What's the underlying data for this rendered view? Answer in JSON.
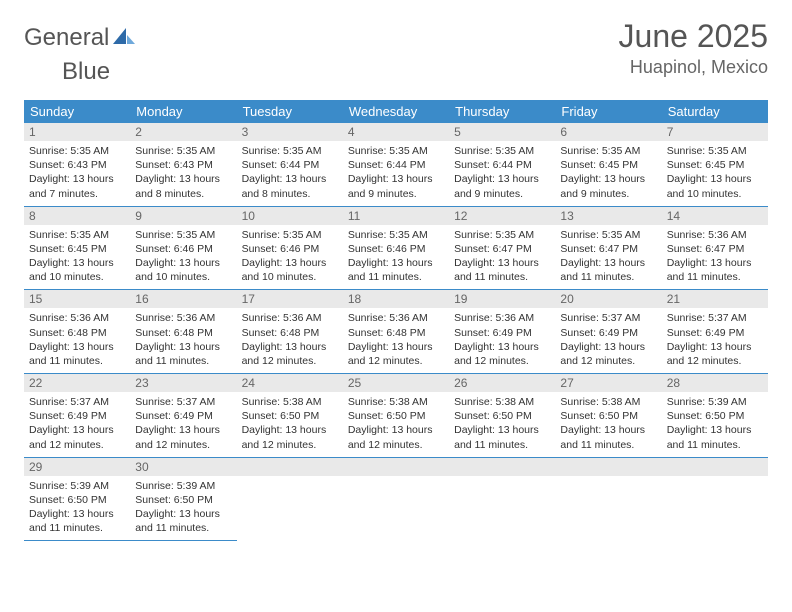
{
  "logo": {
    "gray": "General",
    "blue": "Blue"
  },
  "header": {
    "month": "June 2025",
    "location": "Huapinol, Mexico"
  },
  "weekdays": [
    "Sunday",
    "Monday",
    "Tuesday",
    "Wednesday",
    "Thursday",
    "Friday",
    "Saturday"
  ],
  "colors": {
    "header_bg": "#3b8bc9",
    "row_border": "#3b8bc9",
    "daynum_bg": "#e9e9e9",
    "logo_blue": "#3b7bbf",
    "text": "#333333"
  },
  "labels": {
    "sunrise": "Sunrise:",
    "sunset": "Sunset:",
    "daylight": "Daylight:"
  },
  "grid": [
    [
      {
        "n": 1,
        "sunrise": "5:35 AM",
        "sunset": "6:43 PM",
        "daylight": "13 hours and 7 minutes."
      },
      {
        "n": 2,
        "sunrise": "5:35 AM",
        "sunset": "6:43 PM",
        "daylight": "13 hours and 8 minutes."
      },
      {
        "n": 3,
        "sunrise": "5:35 AM",
        "sunset": "6:44 PM",
        "daylight": "13 hours and 8 minutes."
      },
      {
        "n": 4,
        "sunrise": "5:35 AM",
        "sunset": "6:44 PM",
        "daylight": "13 hours and 9 minutes."
      },
      {
        "n": 5,
        "sunrise": "5:35 AM",
        "sunset": "6:44 PM",
        "daylight": "13 hours and 9 minutes."
      },
      {
        "n": 6,
        "sunrise": "5:35 AM",
        "sunset": "6:45 PM",
        "daylight": "13 hours and 9 minutes."
      },
      {
        "n": 7,
        "sunrise": "5:35 AM",
        "sunset": "6:45 PM",
        "daylight": "13 hours and 10 minutes."
      }
    ],
    [
      {
        "n": 8,
        "sunrise": "5:35 AM",
        "sunset": "6:45 PM",
        "daylight": "13 hours and 10 minutes."
      },
      {
        "n": 9,
        "sunrise": "5:35 AM",
        "sunset": "6:46 PM",
        "daylight": "13 hours and 10 minutes."
      },
      {
        "n": 10,
        "sunrise": "5:35 AM",
        "sunset": "6:46 PM",
        "daylight": "13 hours and 10 minutes."
      },
      {
        "n": 11,
        "sunrise": "5:35 AM",
        "sunset": "6:46 PM",
        "daylight": "13 hours and 11 minutes."
      },
      {
        "n": 12,
        "sunrise": "5:35 AM",
        "sunset": "6:47 PM",
        "daylight": "13 hours and 11 minutes."
      },
      {
        "n": 13,
        "sunrise": "5:35 AM",
        "sunset": "6:47 PM",
        "daylight": "13 hours and 11 minutes."
      },
      {
        "n": 14,
        "sunrise": "5:36 AM",
        "sunset": "6:47 PM",
        "daylight": "13 hours and 11 minutes."
      }
    ],
    [
      {
        "n": 15,
        "sunrise": "5:36 AM",
        "sunset": "6:48 PM",
        "daylight": "13 hours and 11 minutes."
      },
      {
        "n": 16,
        "sunrise": "5:36 AM",
        "sunset": "6:48 PM",
        "daylight": "13 hours and 11 minutes."
      },
      {
        "n": 17,
        "sunrise": "5:36 AM",
        "sunset": "6:48 PM",
        "daylight": "13 hours and 12 minutes."
      },
      {
        "n": 18,
        "sunrise": "5:36 AM",
        "sunset": "6:48 PM",
        "daylight": "13 hours and 12 minutes."
      },
      {
        "n": 19,
        "sunrise": "5:36 AM",
        "sunset": "6:49 PM",
        "daylight": "13 hours and 12 minutes."
      },
      {
        "n": 20,
        "sunrise": "5:37 AM",
        "sunset": "6:49 PM",
        "daylight": "13 hours and 12 minutes."
      },
      {
        "n": 21,
        "sunrise": "5:37 AM",
        "sunset": "6:49 PM",
        "daylight": "13 hours and 12 minutes."
      }
    ],
    [
      {
        "n": 22,
        "sunrise": "5:37 AM",
        "sunset": "6:49 PM",
        "daylight": "13 hours and 12 minutes."
      },
      {
        "n": 23,
        "sunrise": "5:37 AM",
        "sunset": "6:49 PM",
        "daylight": "13 hours and 12 minutes."
      },
      {
        "n": 24,
        "sunrise": "5:38 AM",
        "sunset": "6:50 PM",
        "daylight": "13 hours and 12 minutes."
      },
      {
        "n": 25,
        "sunrise": "5:38 AM",
        "sunset": "6:50 PM",
        "daylight": "13 hours and 12 minutes."
      },
      {
        "n": 26,
        "sunrise": "5:38 AM",
        "sunset": "6:50 PM",
        "daylight": "13 hours and 11 minutes."
      },
      {
        "n": 27,
        "sunrise": "5:38 AM",
        "sunset": "6:50 PM",
        "daylight": "13 hours and 11 minutes."
      },
      {
        "n": 28,
        "sunrise": "5:39 AM",
        "sunset": "6:50 PM",
        "daylight": "13 hours and 11 minutes."
      }
    ],
    [
      {
        "n": 29,
        "sunrise": "5:39 AM",
        "sunset": "6:50 PM",
        "daylight": "13 hours and 11 minutes."
      },
      {
        "n": 30,
        "sunrise": "5:39 AM",
        "sunset": "6:50 PM",
        "daylight": "13 hours and 11 minutes."
      },
      null,
      null,
      null,
      null,
      null
    ]
  ]
}
